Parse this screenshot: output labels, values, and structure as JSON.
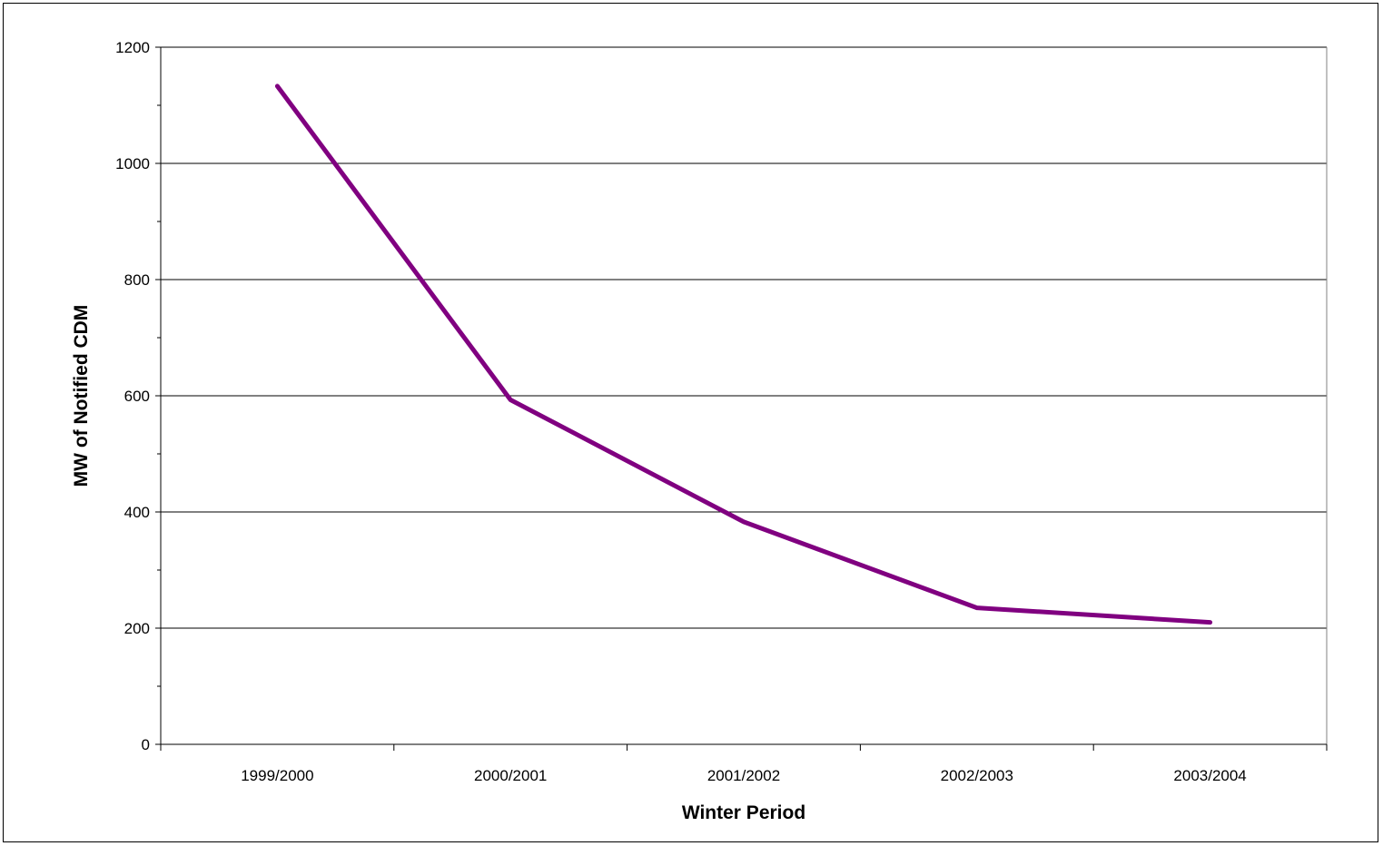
{
  "chart_data": {
    "type": "line",
    "title": "",
    "xlabel": "Winter Period",
    "ylabel": "MW of Notified CDM",
    "categories": [
      "1999/2000",
      "2000/2001",
      "2001/2002",
      "2002/2003",
      "2003/2004"
    ],
    "series": [
      {
        "values": [
          1133,
          593,
          383,
          235,
          210
        ],
        "color": "#800080"
      }
    ],
    "ylim": [
      0,
      1200
    ],
    "yticks": [
      "0",
      "200",
      "400",
      "600",
      "800",
      "1000",
      "1200"
    ],
    "grid": true,
    "legend": "none"
  }
}
